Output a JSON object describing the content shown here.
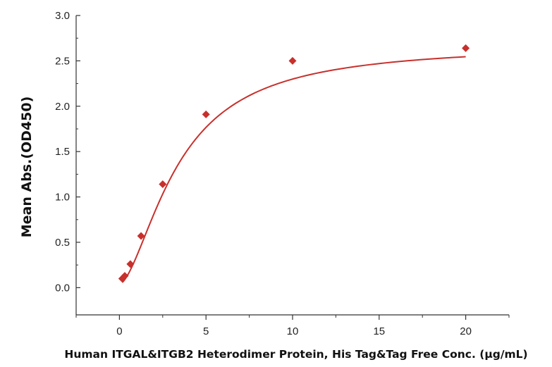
{
  "chart_data": {
    "type": "scatter",
    "title": "",
    "xlabel": "Human ITGAL&ITGB2 Heterodimer Protein, His Tag&Tag Free Conc. (µg/mL)",
    "ylabel": "Mean Abs.(OD450)",
    "xlim": [
      -2.5,
      22.5
    ],
    "ylim": [
      -0.3,
      3.0
    ],
    "xticks": [
      0,
      5,
      10,
      15,
      20
    ],
    "xtick_labels": [
      "0",
      "5",
      "10",
      "15",
      "20"
    ],
    "yticks": [
      0.0,
      0.5,
      1.0,
      1.5,
      2.0,
      2.5,
      3.0
    ],
    "ytick_labels": [
      "0.0",
      "0.5",
      "1.0",
      "1.5",
      "2.0",
      "2.5",
      "3.0"
    ],
    "grid": false,
    "legend": "none",
    "series": [
      {
        "marker": "diamond",
        "color": "#c8302c",
        "x": [
          0.16,
          0.31,
          0.63,
          1.25,
          2.5,
          5,
          10,
          20
        ],
        "y": [
          0.1,
          0.13,
          0.26,
          0.57,
          1.14,
          1.91,
          2.5,
          2.64
        ]
      }
    ],
    "fit_curve": {
      "model": "4PL",
      "color": "#c8302c",
      "bottom": 0.04,
      "top": 2.68,
      "ec50": 3.4,
      "hill": 1.65
    }
  }
}
